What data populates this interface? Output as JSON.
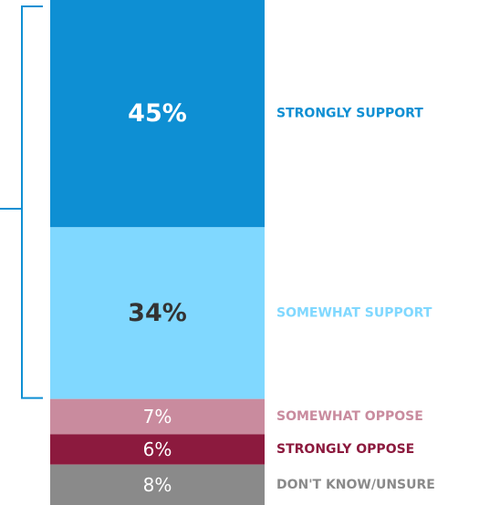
{
  "chart_data": {
    "type": "bar",
    "stacked": true,
    "orientation": "vertical",
    "categories": [
      "STRONGLY SUPPORT",
      "SOMEWHAT SUPPORT",
      "SOMEWHAT OPPOSE",
      "STRONGLY OPPOSE",
      "DON'T KNOW/UNSURE"
    ],
    "values": [
      45,
      34,
      7,
      6,
      8
    ],
    "value_labels": [
      "45%",
      "34%",
      "7%",
      "6%",
      "8%"
    ],
    "colors": [
      "#0E8FD3",
      "#80D8FF",
      "#C98B9E",
      "#8C1A3E",
      "#8A8A8A"
    ],
    "label_colors": [
      "#0E8FD3",
      "#80D8FF",
      "#C98B9E",
      "#8C1A3E",
      "#8A8A8A"
    ],
    "value_label_colors": [
      "#FFFFFF",
      "#333333",
      "#FFFFFF",
      "#FFFFFF",
      "#FFFFFF"
    ],
    "value_label_bold": [
      true,
      true,
      false,
      false,
      false
    ],
    "bracket": {
      "spans_categories": [
        "STRONGLY SUPPORT",
        "SOMEWHAT SUPPORT"
      ],
      "color": "#0E8FD3"
    },
    "total_shown": 100
  }
}
